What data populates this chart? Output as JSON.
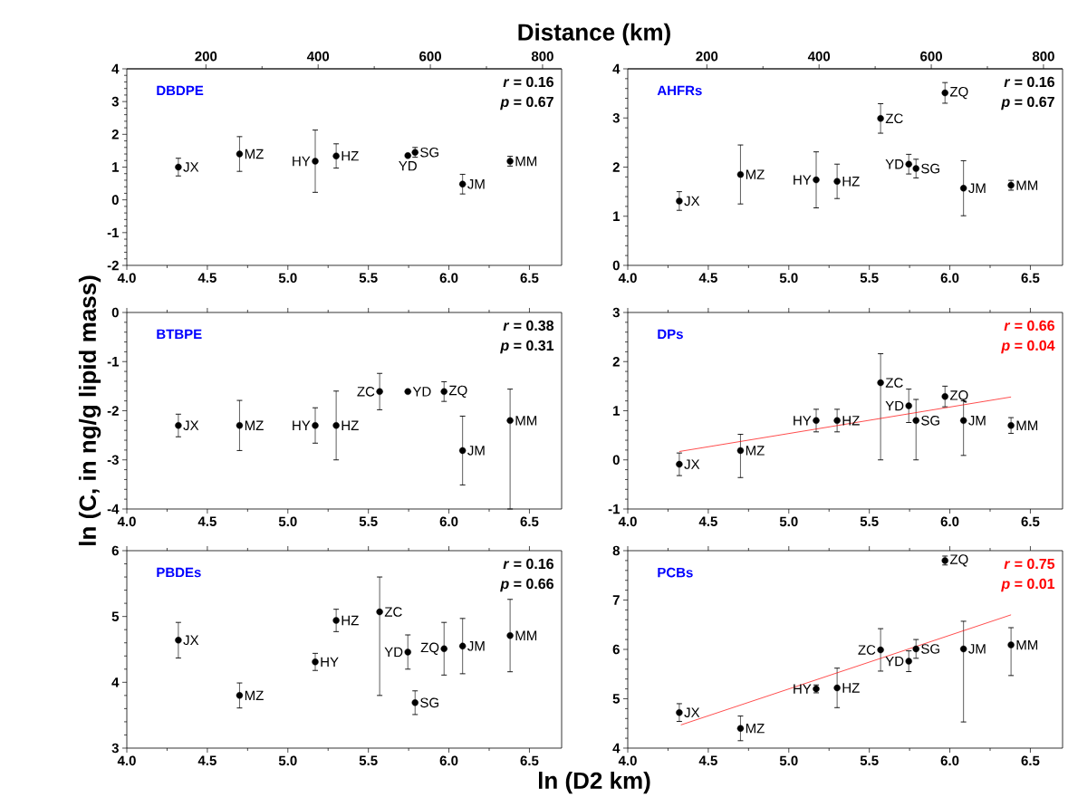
{
  "chart_data": [
    {
      "type": "scatter",
      "title": "DBDPE",
      "x2label": "Distance (km)",
      "x": [
        4.32,
        4.7,
        5.17,
        5.3,
        5.745,
        5.79,
        6.085,
        6.38
      ],
      "series": [
        {
          "color": "#000000",
          "marker": "circle",
          "values": [
            1.0,
            1.4,
            1.18,
            1.34,
            1.35,
            1.45,
            0.48,
            1.18
          ],
          "errors": [
            0.27,
            0.53,
            0.95,
            0.37,
            null,
            0.15,
            0.3,
            0.15
          ]
        }
      ],
      "annotations": [
        "*r* = 0.16",
        "*p* = 0.67",
        {
          "text": "JX",
          "x": 4.32,
          "y": 1.0
        },
        {
          "text": "MZ",
          "x": 4.7,
          "y": 1.4
        },
        {
          "text": "HY",
          "x": 5.17,
          "y": 1.18
        },
        {
          "text": "HZ",
          "x": 5.3,
          "y": 1.34
        },
        {
          "text": "YD",
          "x": 5.745,
          "y": 1.35
        },
        {
          "text": "SG",
          "x": 5.79,
          "y": 1.45
        },
        {
          "text": "JM",
          "x": 6.085,
          "y": 0.48
        },
        {
          "text": "MM",
          "x": 6.38,
          "y": 1.18
        }
      ],
      "xlim": [
        4.0,
        6.7
      ],
      "ylim": [
        -2,
        4
      ],
      "xticks": [
        {
          "value": 4,
          "label": "4.0"
        },
        {
          "value": 4.5,
          "label": "4.5"
        },
        {
          "value": 5,
          "label": "5.0"
        },
        {
          "value": 5.5,
          "label": "5.5"
        },
        {
          "value": 6,
          "label": "6.0"
        },
        {
          "value": 6.5,
          "label": "6.5"
        }
      ],
      "yticks": [
        -2,
        -1,
        0,
        1,
        2,
        3,
        4
      ],
      "x2lim": [
        59,
        834
      ],
      "x2ticks": [
        200,
        400,
        600,
        800
      ]
    },
    {
      "type": "scatter",
      "title": "AHFRs",
      "x": [
        4.32,
        4.7,
        5.17,
        5.3,
        5.57,
        5.745,
        5.79,
        5.97,
        6.085,
        6.38
      ],
      "series": [
        {
          "color": "#000000",
          "marker": "circle",
          "values": [
            1.31,
            1.85,
            1.74,
            1.71,
            2.99,
            2.06,
            1.97,
            3.51,
            1.57,
            1.63
          ],
          "errors": [
            0.19,
            0.6,
            0.57,
            0.35,
            0.3,
            0.2,
            0.19,
            0.21,
            0.56,
            0.1
          ]
        }
      ],
      "annotations": [
        "*r* = 0.16",
        "*p* = 0.67",
        {
          "text": "JX",
          "x": 4.32,
          "y": 1.31
        },
        {
          "text": "MZ",
          "x": 4.7,
          "y": 1.85
        },
        {
          "text": "HY",
          "x": 5.17,
          "y": 1.74
        },
        {
          "text": "HZ",
          "x": 5.3,
          "y": 1.71
        },
        {
          "text": "ZC",
          "x": 5.57,
          "y": 2.99
        },
        {
          "text": "YD",
          "x": 5.745,
          "y": 2.06
        },
        {
          "text": "SG",
          "x": 5.79,
          "y": 1.97
        },
        {
          "text": "ZQ",
          "x": 5.97,
          "y": 3.51
        },
        {
          "text": "JM",
          "x": 6.085,
          "y": 1.57
        },
        {
          "text": "MM",
          "x": 6.38,
          "y": 1.63
        }
      ],
      "xlim": [
        4.0,
        6.7
      ],
      "ylim": [
        0,
        4
      ],
      "xticks": [
        {
          "value": 4,
          "label": "4.0"
        },
        {
          "value": 4.5,
          "label": "4.5"
        },
        {
          "value": 5,
          "label": "5.0"
        },
        {
          "value": 5.5,
          "label": "5.5"
        },
        {
          "value": 6,
          "label": "6.0"
        },
        {
          "value": 6.5,
          "label": "6.5"
        }
      ],
      "yticks": [
        0,
        1,
        2,
        3,
        4
      ],
      "x2lim": [
        59,
        834
      ],
      "x2ticks": [
        200,
        400,
        600,
        800
      ]
    },
    {
      "type": "scatter",
      "title": "BTBPE",
      "ylabel": "ln (C, in ng/g lipid mass)",
      "x": [
        4.32,
        4.7,
        5.17,
        5.3,
        5.57,
        5.745,
        5.97,
        6.085,
        6.38
      ],
      "series": [
        {
          "color": "#000000",
          "marker": "circle",
          "values": [
            -2.3,
            -2.3,
            -2.3,
            -2.3,
            -1.61,
            -1.61,
            -1.61,
            -2.81,
            -2.2
          ],
          "errors": [
            0.23,
            0.51,
            0.36,
            0.7,
            0.37,
            null,
            0.2,
            0.7,
            [
              -4,
              -1.56
            ]
          ]
        }
      ],
      "annotations": [
        "*r* = 0.38",
        "*p* = 0.31",
        {
          "text": "JX",
          "x": 4.32,
          "y": -2.3
        },
        {
          "text": "MZ",
          "x": 4.7,
          "y": -2.3
        },
        {
          "text": "HY",
          "x": 5.17,
          "y": -2.3
        },
        {
          "text": "HZ",
          "x": 5.3,
          "y": -2.3
        },
        {
          "text": "ZC",
          "x": 5.57,
          "y": -1.61
        },
        {
          "text": "YD",
          "x": 5.745,
          "y": -1.61
        },
        {
          "text": "ZQ",
          "x": 5.97,
          "y": -1.61
        },
        {
          "text": "JM",
          "x": 6.085,
          "y": -2.81
        },
        {
          "text": "MM",
          "x": 6.38,
          "y": -2.2
        }
      ],
      "xlim": [
        4.0,
        6.7
      ],
      "ylim": [
        -4,
        0
      ],
      "xticks": [
        {
          "value": 4,
          "label": "4.0"
        },
        {
          "value": 4.5,
          "label": "4.5"
        },
        {
          "value": 5,
          "label": "5.0"
        },
        {
          "value": 5.5,
          "label": "5.5"
        },
        {
          "value": 6,
          "label": "6.0"
        },
        {
          "value": 6.5,
          "label": "6.5"
        }
      ],
      "yticks": [
        -4,
        -3,
        -2,
        -1,
        0
      ]
    },
    {
      "type": "scatter",
      "title": "DPs",
      "x": [
        4.32,
        4.7,
        5.17,
        5.3,
        5.57,
        5.745,
        5.79,
        5.97,
        6.085,
        6.38
      ],
      "series": [
        {
          "color": "#000000",
          "marker": "circle",
          "values": [
            -0.09,
            0.19,
            0.8,
            0.8,
            1.57,
            1.1,
            0.8,
            1.29,
            0.8,
            0.7
          ],
          "errors": [
            0.23,
            [
              -0.36,
              0.52
            ],
            0.23,
            0.23,
            [
              0,
              2.16
            ],
            0.34,
            [
              0,
              1.23
            ],
            0.21,
            [
              0.09,
              1.2
            ],
            0.16
          ]
        },
        {
          "type": "line",
          "color": "#ff0000",
          "marker": "none",
          "x": [
            4.32,
            6.38
          ],
          "values": [
            0.17,
            1.28
          ]
        }
      ],
      "annotations": [
        "*r* = 0.66",
        "*p* = 0.04",
        {
          "text": "JX",
          "x": 4.32,
          "y": -0.09
        },
        {
          "text": "MZ",
          "x": 4.7,
          "y": 0.19
        },
        {
          "text": "HY",
          "x": 5.17,
          "y": 0.8
        },
        {
          "text": "HZ",
          "x": 5.3,
          "y": 0.8
        },
        {
          "text": "ZC",
          "x": 5.57,
          "y": 1.57
        },
        {
          "text": "YD",
          "x": 5.745,
          "y": 1.1
        },
        {
          "text": "SG",
          "x": 5.79,
          "y": 0.8
        },
        {
          "text": "ZQ",
          "x": 5.97,
          "y": 1.29
        },
        {
          "text": "JM",
          "x": 6.085,
          "y": 0.8
        },
        {
          "text": "MM",
          "x": 6.38,
          "y": 0.7
        }
      ],
      "xlim": [
        4.0,
        6.7
      ],
      "ylim": [
        -1,
        3
      ],
      "xticks": [
        {
          "value": 4,
          "label": "4.0"
        },
        {
          "value": 4.5,
          "label": "4.5"
        },
        {
          "value": 5,
          "label": "5.0"
        },
        {
          "value": 5.5,
          "label": "5.5"
        },
        {
          "value": 6,
          "label": "6.0"
        },
        {
          "value": 6.5,
          "label": "6.5"
        }
      ],
      "yticks": [
        -1,
        0,
        1,
        2,
        3
      ]
    },
    {
      "type": "scatter",
      "title": "PBDEs",
      "xlabel": "ln (D2 km)",
      "x": [
        4.32,
        4.7,
        5.17,
        5.3,
        5.57,
        5.745,
        5.79,
        5.97,
        6.085,
        6.38
      ],
      "series": [
        {
          "color": "#000000",
          "marker": "circle",
          "values": [
            4.64,
            3.8,
            4.31,
            4.94,
            5.07,
            4.46,
            3.69,
            4.51,
            4.55,
            4.71
          ],
          "errors": [
            0.27,
            0.19,
            0.13,
            0.17,
            [
              3.8,
              5.6
            ],
            0.26,
            0.18,
            0.4,
            0.42,
            0.55
          ]
        }
      ],
      "annotations": [
        "*r* = 0.16",
        "*p* = 0.66",
        {
          "text": "JX",
          "x": 4.32,
          "y": 4.64
        },
        {
          "text": "MZ",
          "x": 4.7,
          "y": 3.8
        },
        {
          "text": "HY",
          "x": 5.17,
          "y": 4.31
        },
        {
          "text": "HZ",
          "x": 5.3,
          "y": 4.94
        },
        {
          "text": "ZC",
          "x": 5.57,
          "y": 5.07
        },
        {
          "text": "YD",
          "x": 5.745,
          "y": 4.46
        },
        {
          "text": "SG",
          "x": 5.79,
          "y": 3.69
        },
        {
          "text": "ZQ",
          "x": 5.97,
          "y": 4.51
        },
        {
          "text": "JM",
          "x": 6.085,
          "y": 4.55
        },
        {
          "text": "MM",
          "x": 6.38,
          "y": 4.71
        }
      ],
      "xlim": [
        4.0,
        6.7
      ],
      "ylim": [
        3,
        6
      ],
      "xticks": [
        {
          "value": 4,
          "label": "4.0"
        },
        {
          "value": 4.5,
          "label": "4.5"
        },
        {
          "value": 5,
          "label": "5.0"
        },
        {
          "value": 5.5,
          "label": "5.5"
        },
        {
          "value": 6,
          "label": "6.0"
        },
        {
          "value": 6.5,
          "label": "6.5"
        }
      ],
      "yticks": [
        3,
        4,
        5,
        6
      ]
    },
    {
      "type": "scatter",
      "title": "PCBs",
      "x": [
        4.32,
        4.7,
        5.17,
        5.3,
        5.57,
        5.745,
        5.79,
        5.97,
        6.085,
        6.38
      ],
      "series": [
        {
          "color": "#000000",
          "marker": "circle",
          "values": [
            4.72,
            4.4,
            5.2,
            5.22,
            5.99,
            5.76,
            6.01,
            7.8,
            6.01,
            6.09
          ],
          "errors": [
            0.18,
            0.25,
            0.08,
            0.4,
            0.43,
            0.21,
            0.19,
            0.09,
            [
              4.53,
              6.57
            ],
            [
              5.47,
              6.44
            ]
          ]
        },
        {
          "type": "line",
          "color": "#ff0000",
          "marker": "none",
          "x": [
            4.33,
            6.38
          ],
          "values": [
            4.47,
            6.7
          ]
        }
      ],
      "annotations": [
        "*r* = 0.75",
        "*p* = 0.01",
        {
          "text": "JX",
          "x": 4.32,
          "y": 4.72
        },
        {
          "text": "MZ",
          "x": 4.7,
          "y": 4.4
        },
        {
          "text": "HY",
          "x": 5.17,
          "y": 5.2
        },
        {
          "text": "HZ",
          "x": 5.3,
          "y": 5.22
        },
        {
          "text": "ZC",
          "x": 5.57,
          "y": 5.99
        },
        {
          "text": "YD",
          "x": 5.745,
          "y": 5.76
        },
        {
          "text": "SG",
          "x": 5.79,
          "y": 6.01
        },
        {
          "text": "ZQ",
          "x": 5.97,
          "y": 7.8
        },
        {
          "text": "JM",
          "x": 6.085,
          "y": 6.01
        },
        {
          "text": "MM",
          "x": 6.38,
          "y": 6.09
        }
      ],
      "xlim": [
        4.0,
        6.7
      ],
      "ylim": [
        4,
        8
      ],
      "xticks": [
        {
          "value": 4,
          "label": "4.0"
        },
        {
          "value": 4.5,
          "label": "4.5"
        },
        {
          "value": 5,
          "label": "5.0"
        },
        {
          "value": 5.5,
          "label": "5.5"
        },
        {
          "value": 6,
          "label": "6.0"
        },
        {
          "value": 6.5,
          "label": "6.5"
        }
      ],
      "yticks": [
        4,
        5,
        6,
        7,
        8
      ]
    }
  ]
}
